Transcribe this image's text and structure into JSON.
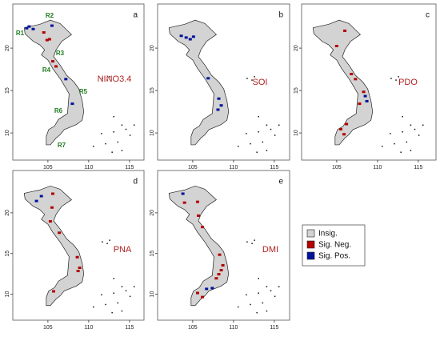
{
  "panels": [
    {
      "letter": "a",
      "index": "NINO3.4",
      "regions": [
        "R1",
        "R2",
        "R3",
        "R4",
        "R5",
        "R6",
        "R7"
      ]
    },
    {
      "letter": "b",
      "index": "SOI"
    },
    {
      "letter": "c",
      "index": "PDO"
    },
    {
      "letter": "d",
      "index": "PNA"
    },
    {
      "letter": "e",
      "index": "DMI"
    }
  ],
  "xticks": [
    105,
    110,
    115
  ],
  "yticks": [
    10,
    15,
    20
  ],
  "legend": [
    "Insig.",
    "Sig. Neg.",
    "Sig. Pos."
  ]
}
